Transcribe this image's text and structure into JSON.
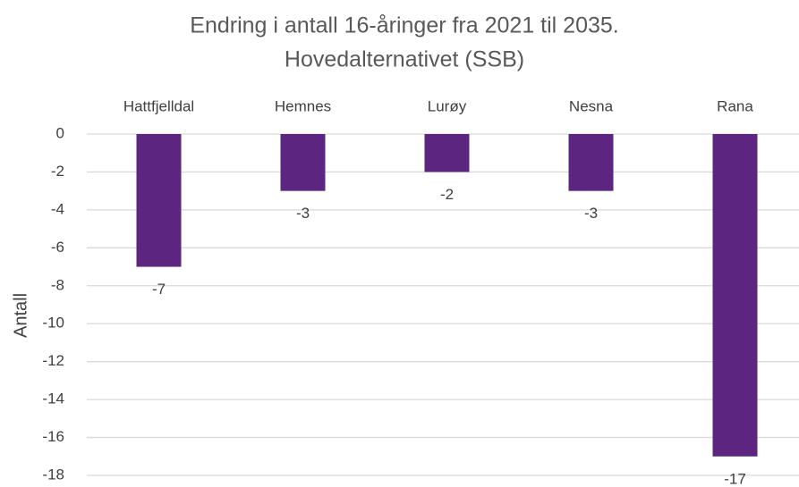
{
  "chart_data": {
    "type": "bar",
    "title": [
      "Endring i antall 16-åringer fra 2021 til 2035.",
      "Hovedalternativet (SSB)"
    ],
    "y_label": "Antall",
    "categories": [
      "Hattfjelldal",
      "Hemnes",
      "Lurøy",
      "Nesna",
      "Rana"
    ],
    "values": [
      -7,
      -3,
      -2,
      -3,
      -17
    ],
    "color": "#5b2580",
    "ylim": [
      -18,
      0
    ],
    "yticks": [
      0,
      -2,
      -4,
      -6,
      -8,
      -10,
      -12,
      -14,
      -16,
      -18
    ],
    "grid": true
  }
}
